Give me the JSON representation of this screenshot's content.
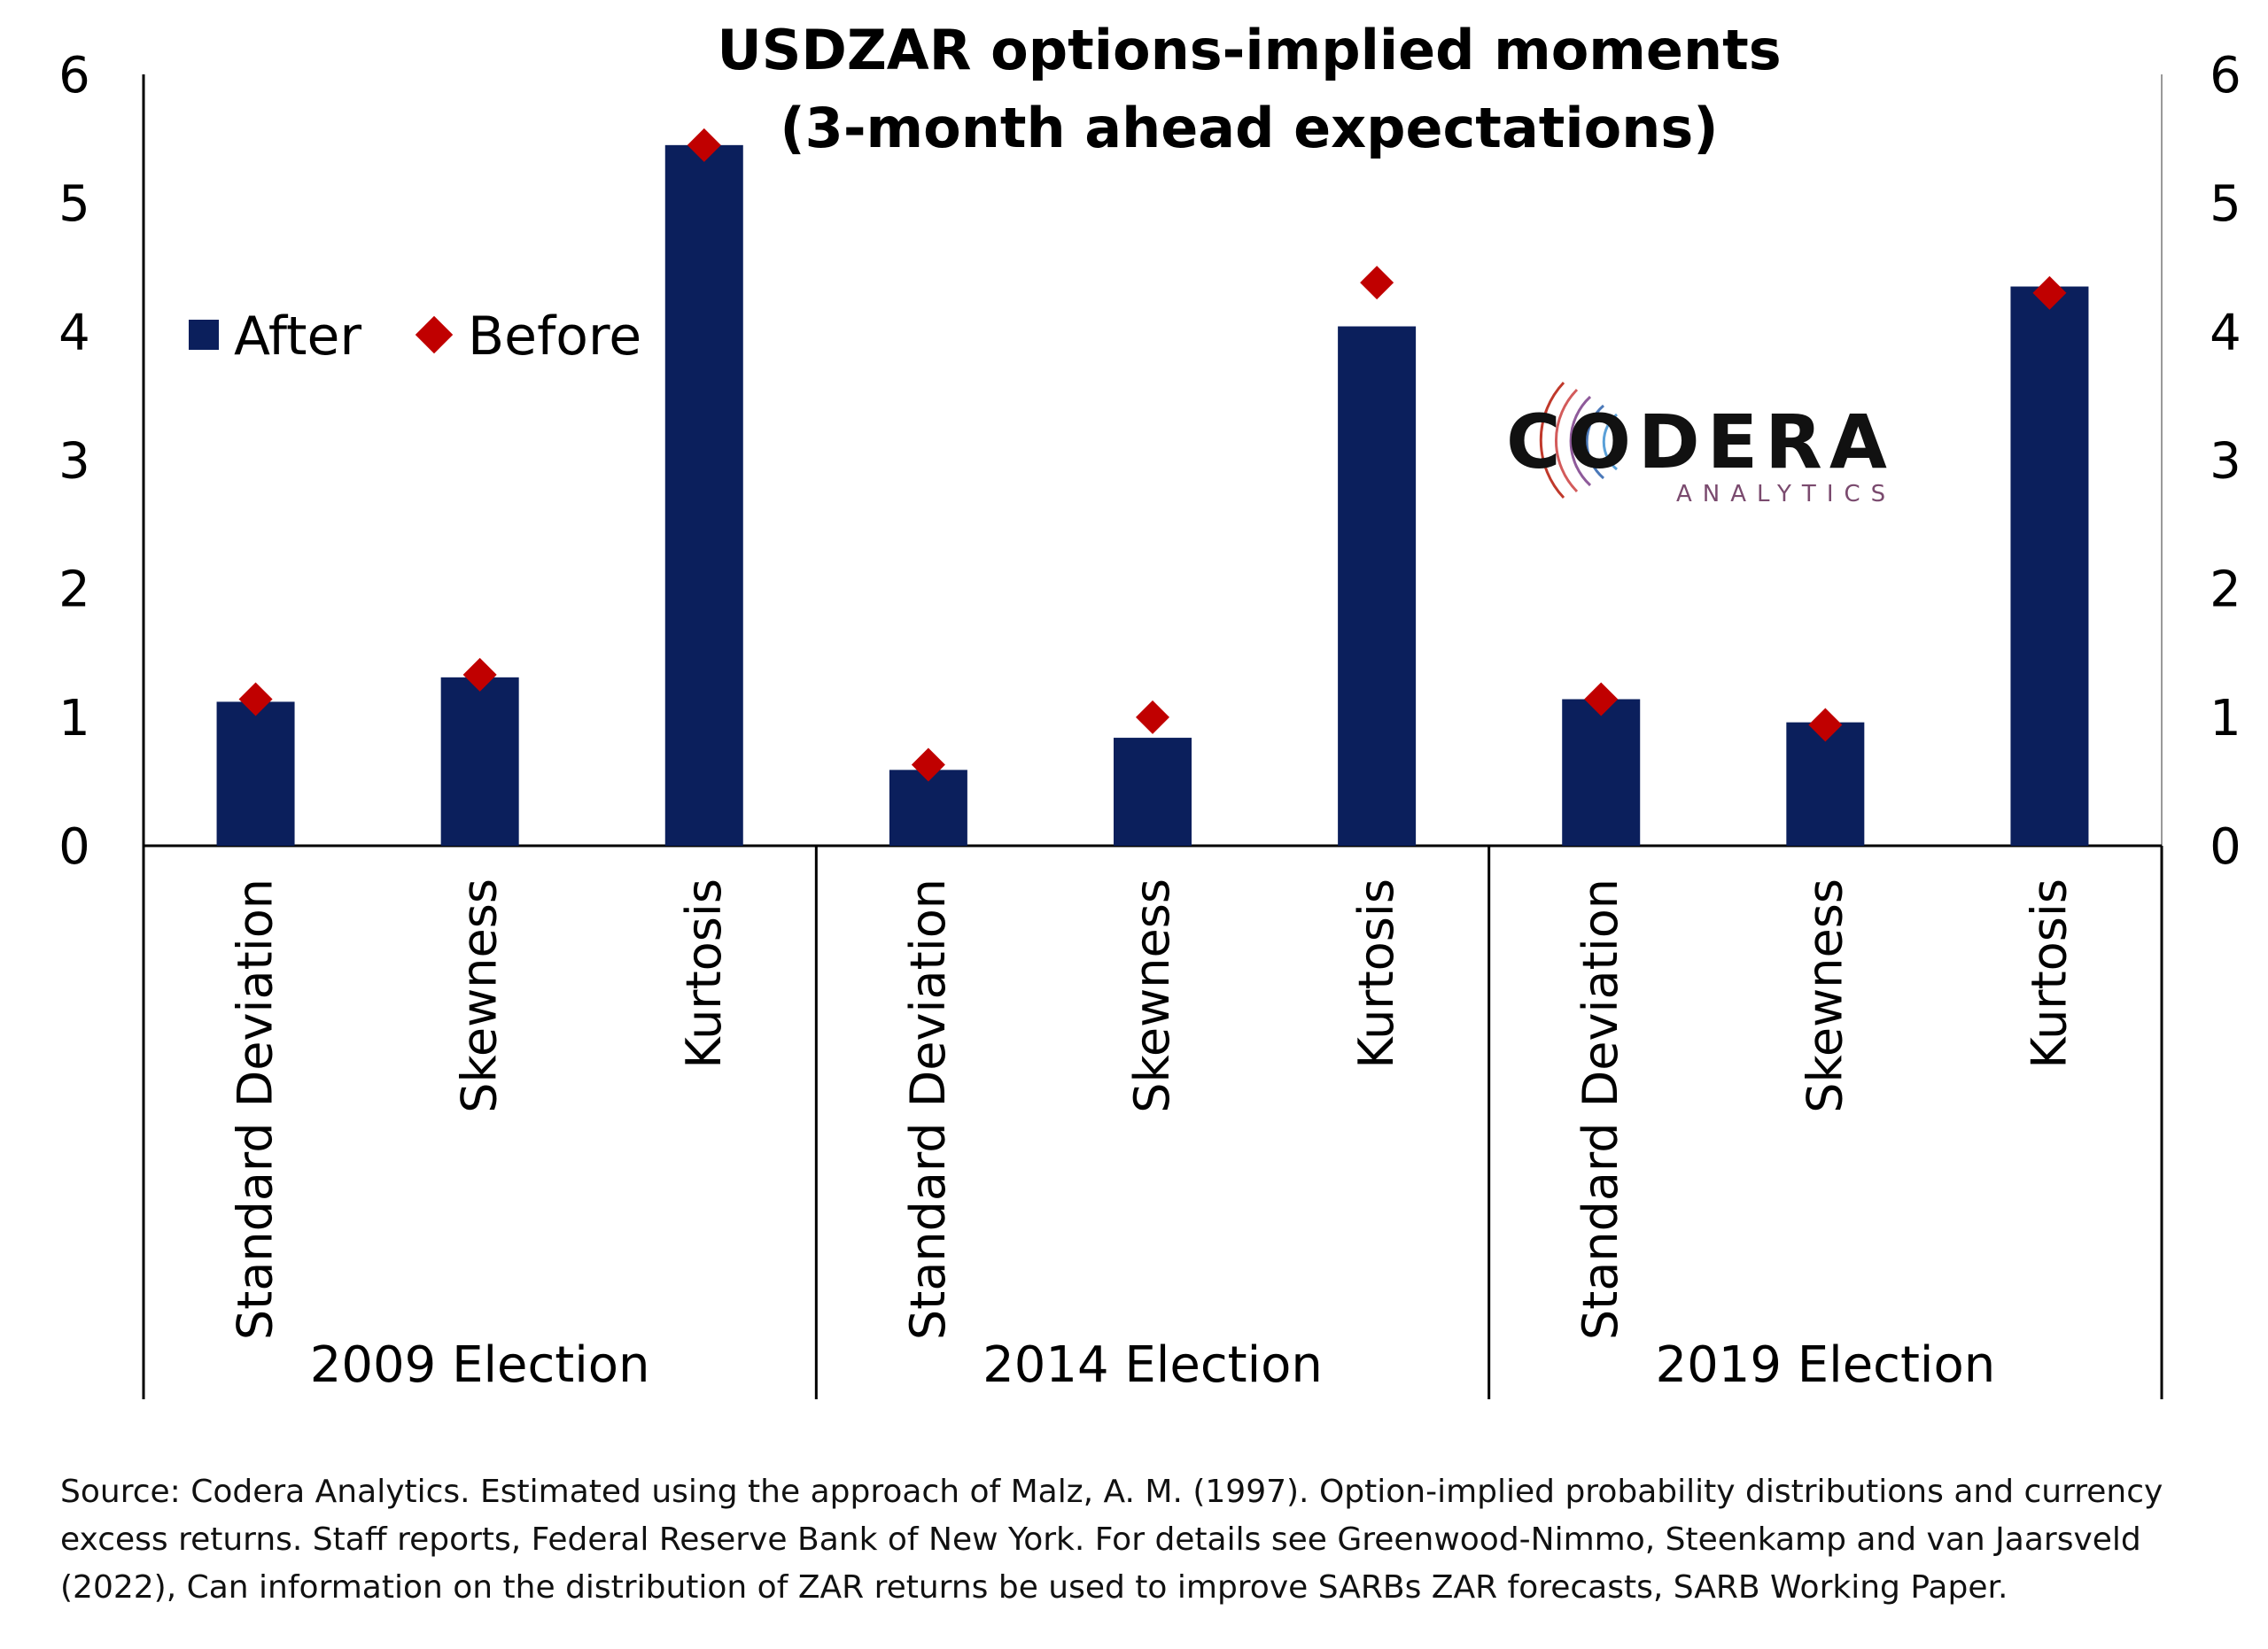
{
  "chart_data": {
    "type": "bar",
    "title": "USDZAR options-implied moments",
    "subtitle": "(3-month ahead expectations)",
    "groups": [
      "2009 Election",
      "2014 Election",
      "2019 Election"
    ],
    "categories": [
      "Standard Deviation",
      "Skewness",
      "Kurtosis",
      "Standard Deviation",
      "Skewness",
      "Kurtosis",
      "Standard Deviation",
      "Skewness",
      "Kurtosis"
    ],
    "series": [
      {
        "name": "After",
        "style": "bar",
        "color": "#0b1f5c",
        "values": [
          1.12,
          1.31,
          5.45,
          0.59,
          0.84,
          4.04,
          1.14,
          0.96,
          4.35
        ]
      },
      {
        "name": "Before",
        "style": "marker-diamond",
        "color": "#c00000",
        "values": [
          1.14,
          1.33,
          5.45,
          0.63,
          1.0,
          4.38,
          1.14,
          0.94,
          4.3
        ]
      }
    ],
    "yticks": [
      "0",
      "1",
      "2",
      "3",
      "4",
      "5",
      "6"
    ],
    "ylim": [
      0,
      6
    ],
    "legend_position": "top-left",
    "grid": false
  },
  "logo": {
    "name": "CODERA",
    "sub": "ANALYTICS"
  },
  "source_note": "Source: Codera Analytics. Estimated using the approach of Malz, A. M. (1997). Option-implied probability distributions and currency excess returns. Staff reports, Federal Reserve Bank of New York. For details see Greenwood-Nimmo, Steenkamp and van Jaarsveld (2022), Can information on the distribution of ZAR returns be used to improve SARBs ZAR forecasts, SARB Working Paper."
}
